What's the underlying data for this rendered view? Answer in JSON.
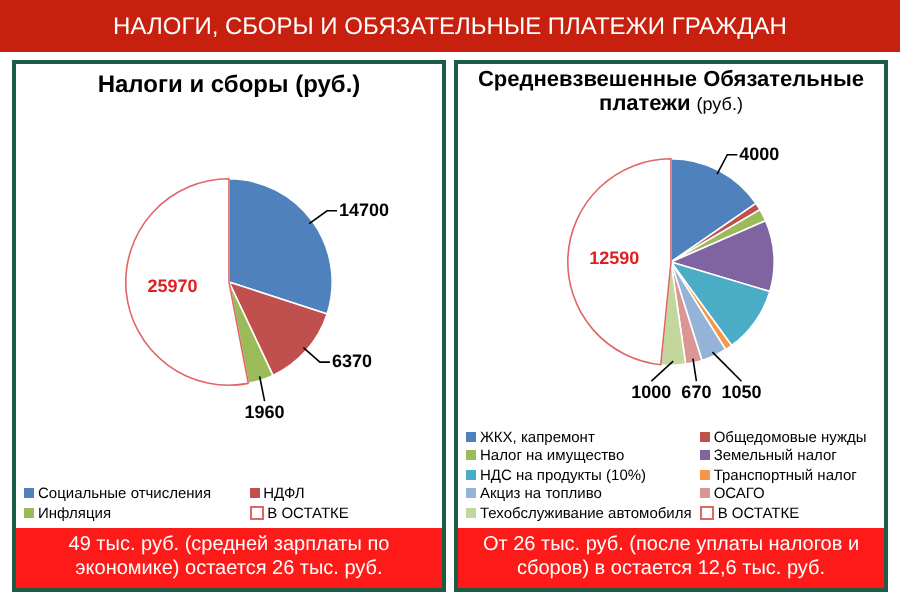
{
  "chart_data": [
    {
      "type": "pie",
      "title": "НАЛОГИ, СБОРЫ И ОБЯЗАТЕЛЬНЫЕ ПЛАТЕЖИ ГРАЖДАН",
      "subtitle": "Налоги и сборы (руб.)",
      "categories": [
        "Социальные отчисления",
        "НДФЛ",
        "Инфляция",
        "В ОСТАТКЕ"
      ],
      "values": [
        14700,
        6370,
        1960,
        25970
      ],
      "colors": [
        "#4f81bd",
        "#c0504d",
        "#9bbb59",
        "#ffffff"
      ],
      "data_labels": true,
      "legend": "bottom",
      "annotations": [
        "49 тыс. руб. (средней зарплаты по экономике) остается 26 тыс. руб."
      ]
    },
    {
      "type": "pie",
      "title": "Средневзвешенные Обязательные платежи",
      "subtitle": "(руб.)",
      "categories": [
        "ЖКХ, капремонт",
        "Общедомовые нужды",
        "Налог на имущество",
        "Земельный налог",
        "НДС на продукты (10%)",
        "Транспортный налог",
        "Акциз на топливо",
        "ОСАГО",
        "Техобслуживание автомобиля",
        "В ОСТАТКЕ"
      ],
      "values": [
        4000,
        300,
        500,
        2900,
        2700,
        290,
        1050,
        670,
        1000,
        12590
      ],
      "colors": [
        "#4f81bd",
        "#c0504d",
        "#9bbb59",
        "#8064a2",
        "#4bacc6",
        "#f79646",
        "#95b3d7",
        "#d99694",
        "#c3d69b",
        "#ffffff"
      ],
      "value_labels": [
        "4000",
        null,
        null,
        null,
        null,
        null,
        "1050",
        "670",
        "1000",
        "12590"
      ],
      "legend": "bottom",
      "annotations": [
        "От 26 тыс. руб. (после уплаты налогов и сборов) в остается 12,6 тыс. руб."
      ]
    }
  ]
}
